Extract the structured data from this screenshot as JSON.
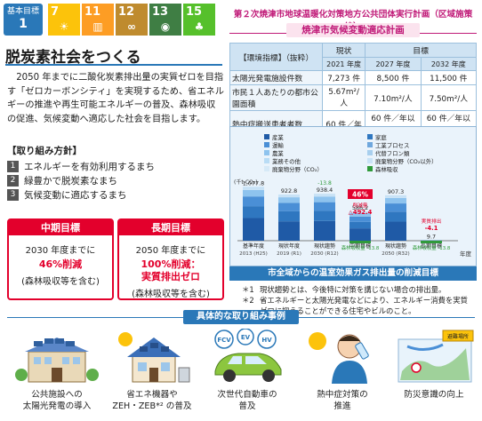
{
  "header": {
    "goal_label": "基本目標",
    "goal_number": "1",
    "sdgs": [
      {
        "num": "7",
        "color": "#fcc30b",
        "icon": "☀"
      },
      {
        "num": "11",
        "color": "#fd9d24",
        "icon": "▥"
      },
      {
        "num": "12",
        "color": "#bf8b2e",
        "icon": "∞"
      },
      {
        "num": "13",
        "color": "#3f7e44",
        "icon": "◉"
      },
      {
        "num": "15",
        "color": "#56c02b",
        "icon": "♣"
      }
    ]
  },
  "title": "脱炭素社会をつくる",
  "intro": "2050 年までに二酸化炭素排出量の実質ゼロを目指す「ゼロカーボンシティ」を実現するため、省エネルギーの推進や再生可能エネルギーの普及、森林吸収の促進、気候変動へ適応した社会を目指します。",
  "policy": {
    "heading": "【取り組み方針】",
    "items": [
      {
        "n": "1",
        "text": "エネルギーを有効利用するまち"
      },
      {
        "n": "2",
        "text": "緑豊かで脱炭素なまち"
      },
      {
        "n": "3",
        "text": "気候変動に適応するまち"
      }
    ]
  },
  "targets": {
    "mid": {
      "head": "中期目標",
      "line1": "2030 年度までに",
      "line2": "46%削減",
      "line3": "(森林吸収等を含む)"
    },
    "long": {
      "head": "長期目標",
      "line1": "2050 年度までに",
      "line2a": "100%削減：",
      "line2b": "実質排出ゼロ",
      "line3": "(森林吸収等を含む)"
    }
  },
  "plan": {
    "title": "第２次焼津市地球温暖化対策地方公共団体実行計画（区域施策編）",
    "subtitle": "焼津市気候変動適応計画"
  },
  "indicators": {
    "col_indicator": "【環境指標】（抜粋）",
    "col_current": "現状",
    "col_target": "目標",
    "years": [
      "2021 年度",
      "2027 年度",
      "2032 年度"
    ],
    "rows": [
      {
        "label": "太陽光発電施設件数",
        "v": [
          "7,273 件",
          "8,500 件",
          "11,500 件"
        ]
      },
      {
        "label": "市民１人あたりの都市公園面積",
        "v": [
          "5.67m²/人",
          "7.10m²/人",
          "7.50m²/人"
        ]
      },
      {
        "label": "熱中症搬送患者者数",
        "v": [
          "60 件／年",
          "60 件／年以下",
          "60 件／年以下"
        ]
      }
    ]
  },
  "chart_data": {
    "type": "bar",
    "unit_label": "(千t-CO₂)",
    "x_unit": "年度",
    "legend": [
      {
        "name": "産業",
        "color": "#1f5aa6"
      },
      {
        "name": "運輸",
        "color": "#4a8fd6"
      },
      {
        "name": "農業",
        "color": "#8ec3ee"
      },
      {
        "name": "業務その他",
        "color": "#b9dcf5"
      },
      {
        "name": "廃棄物分野（CO₂）",
        "color": "#d6e9f7"
      },
      {
        "name": "家庭",
        "color": "#2f77c0"
      },
      {
        "name": "工業プロセス",
        "color": "#6fa7dd"
      },
      {
        "name": "代替フロン類",
        "color": "#a8cfee"
      },
      {
        "name": "廃棄物分野（CO₂以外）",
        "color": "#c8e2f6"
      },
      {
        "name": "森林吸収",
        "color": "#2f9a3a"
      }
    ],
    "categories": [
      {
        "l1": "基準年度",
        "l2": "2013 (H25)"
      },
      {
        "l1": "現状年度",
        "l2": "2019 (R1)"
      },
      {
        "l1": "現状趨勢",
        "l2": "2030 (R12)"
      },
      {
        "l1": "中期目標",
        "l2": ""
      },
      {
        "l1": "現状趨勢",
        "l2": "2050 (R32)"
      },
      {
        "l1": "長期目標",
        "l2": ""
      }
    ],
    "totals": [
      "1,077.8",
      "922.8",
      "938.4",
      "586.2",
      "907.3",
      "9.7"
    ],
    "values": [
      1077.8,
      922.8,
      938.4,
      586.2,
      907.3,
      9.7
    ],
    "extra_labels": [
      "",
      "",
      "-13.8",
      "",
      "",
      ""
    ],
    "annotations": {
      "mid_reduction": "46%",
      "mid_amount_label": "削減量",
      "mid_amount": "△492.4",
      "mid_forest": "森林吸収量\n-13.8",
      "long_amount_label": "実質排出",
      "long_amount": "-4.1",
      "long_forest": "森林吸収量\n-13.8"
    },
    "caption": "市全域からの温室効果ガス排出量の削減目標"
  },
  "notes": [
    {
      "mk": "＊1",
      "text": "現状趨勢とは、今後特に対策を講じない場合の排出量。"
    },
    {
      "mk": "＊2",
      "text": "省エネルギーと太陽光発電などにより、エネルギー消費を実質ゼロに抑えることができる住宅やビルのこと。"
    }
  ],
  "examples": {
    "banner": "具体的な取り組み事例",
    "items": [
      {
        "cap1": "公共施設への",
        "cap2": "太陽光発電の導入"
      },
      {
        "cap1": "省エネ機器や",
        "cap2": "ZEH・ZEB*² の普及"
      },
      {
        "cap1": "次世代自動車の",
        "cap2": "普及"
      },
      {
        "cap1": "熱中症対策の",
        "cap2": "推進"
      },
      {
        "cap1": "防災意識の向上",
        "cap2": ""
      }
    ],
    "car_labels": {
      "fcv": "FCV",
      "ev": "EV",
      "hv": "HV"
    },
    "map_label": "避難場所"
  }
}
